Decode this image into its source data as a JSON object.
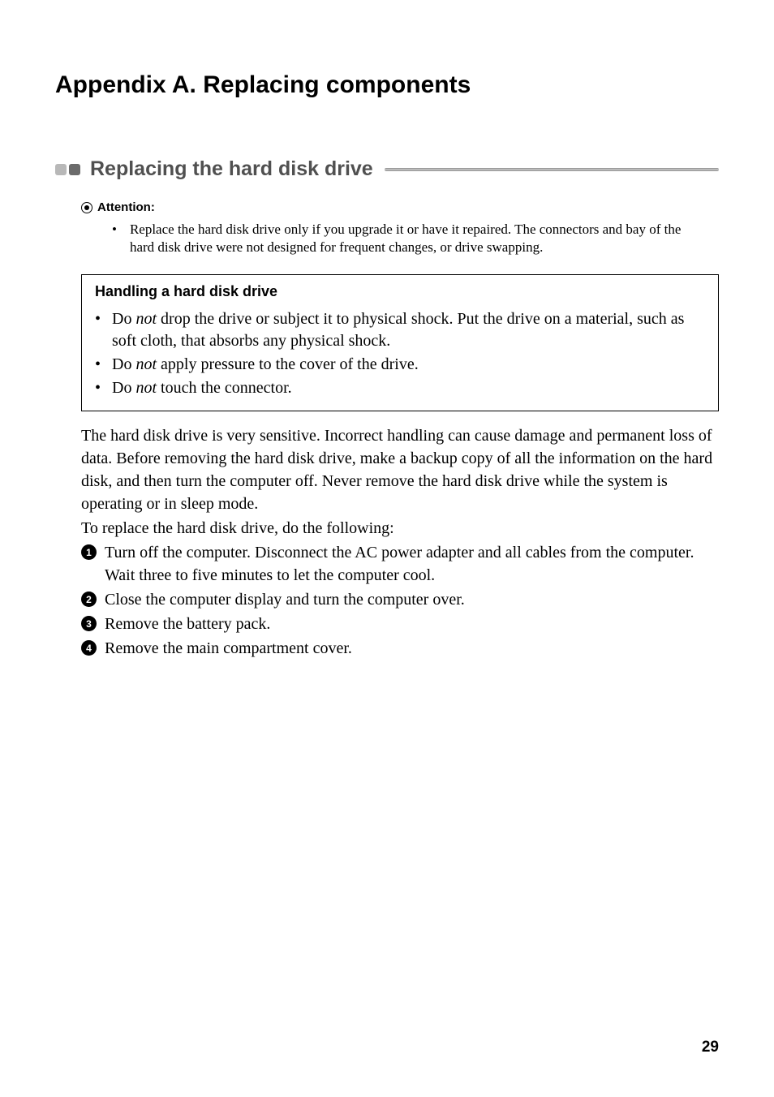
{
  "page": {
    "title": "Appendix A. Replacing components",
    "number": "29",
    "background_color": "#ffffff"
  },
  "section": {
    "title": "Replacing the hard disk drive",
    "block_colors": [
      "#b8b8b8",
      "#6b6b6b"
    ],
    "title_color": "#505050",
    "title_fontsize": 25
  },
  "attention": {
    "label": "Attention:",
    "items": [
      {
        "text": "Replace the hard disk drive only if you upgrade it or have it repaired. The connectors and bay of the hard disk drive were not designed for frequent changes, or drive swapping."
      }
    ]
  },
  "handling_box": {
    "title": "Handling a hard disk drive",
    "border_color": "#000000",
    "items": [
      {
        "prefix": "Do ",
        "italic": "not",
        "suffix": " drop the drive or subject it to physical shock. Put the drive on a material, such as soft cloth, that absorbs any physical shock."
      },
      {
        "prefix": "Do ",
        "italic": "not",
        "suffix": " apply pressure to the cover of the drive."
      },
      {
        "prefix": "Do ",
        "italic": "not",
        "suffix": " touch the connector."
      }
    ]
  },
  "body": {
    "paragraph1": "The hard disk drive is very sensitive. Incorrect handling can cause damage and permanent loss of data. Before removing the hard disk drive, make a backup copy of all the information on the hard disk, and then turn the computer off. Never remove the hard disk drive while the system is operating or in sleep mode.",
    "paragraph2": "To replace the hard disk drive, do the following:"
  },
  "steps": [
    {
      "number": "1",
      "text": "Turn off the computer. Disconnect the AC power adapter and all cables from the computer. Wait three to five minutes to let the computer cool."
    },
    {
      "number": "2",
      "text": "Close the computer display and turn the computer over."
    },
    {
      "number": "3",
      "text": "Remove the battery pack."
    },
    {
      "number": "4",
      "text": "Remove the main compartment cover."
    }
  ],
  "typography": {
    "title_font": "Arial",
    "body_font": "Georgia",
    "title_fontsize": 30,
    "body_fontsize": 20,
    "attention_fontsize": 17
  }
}
